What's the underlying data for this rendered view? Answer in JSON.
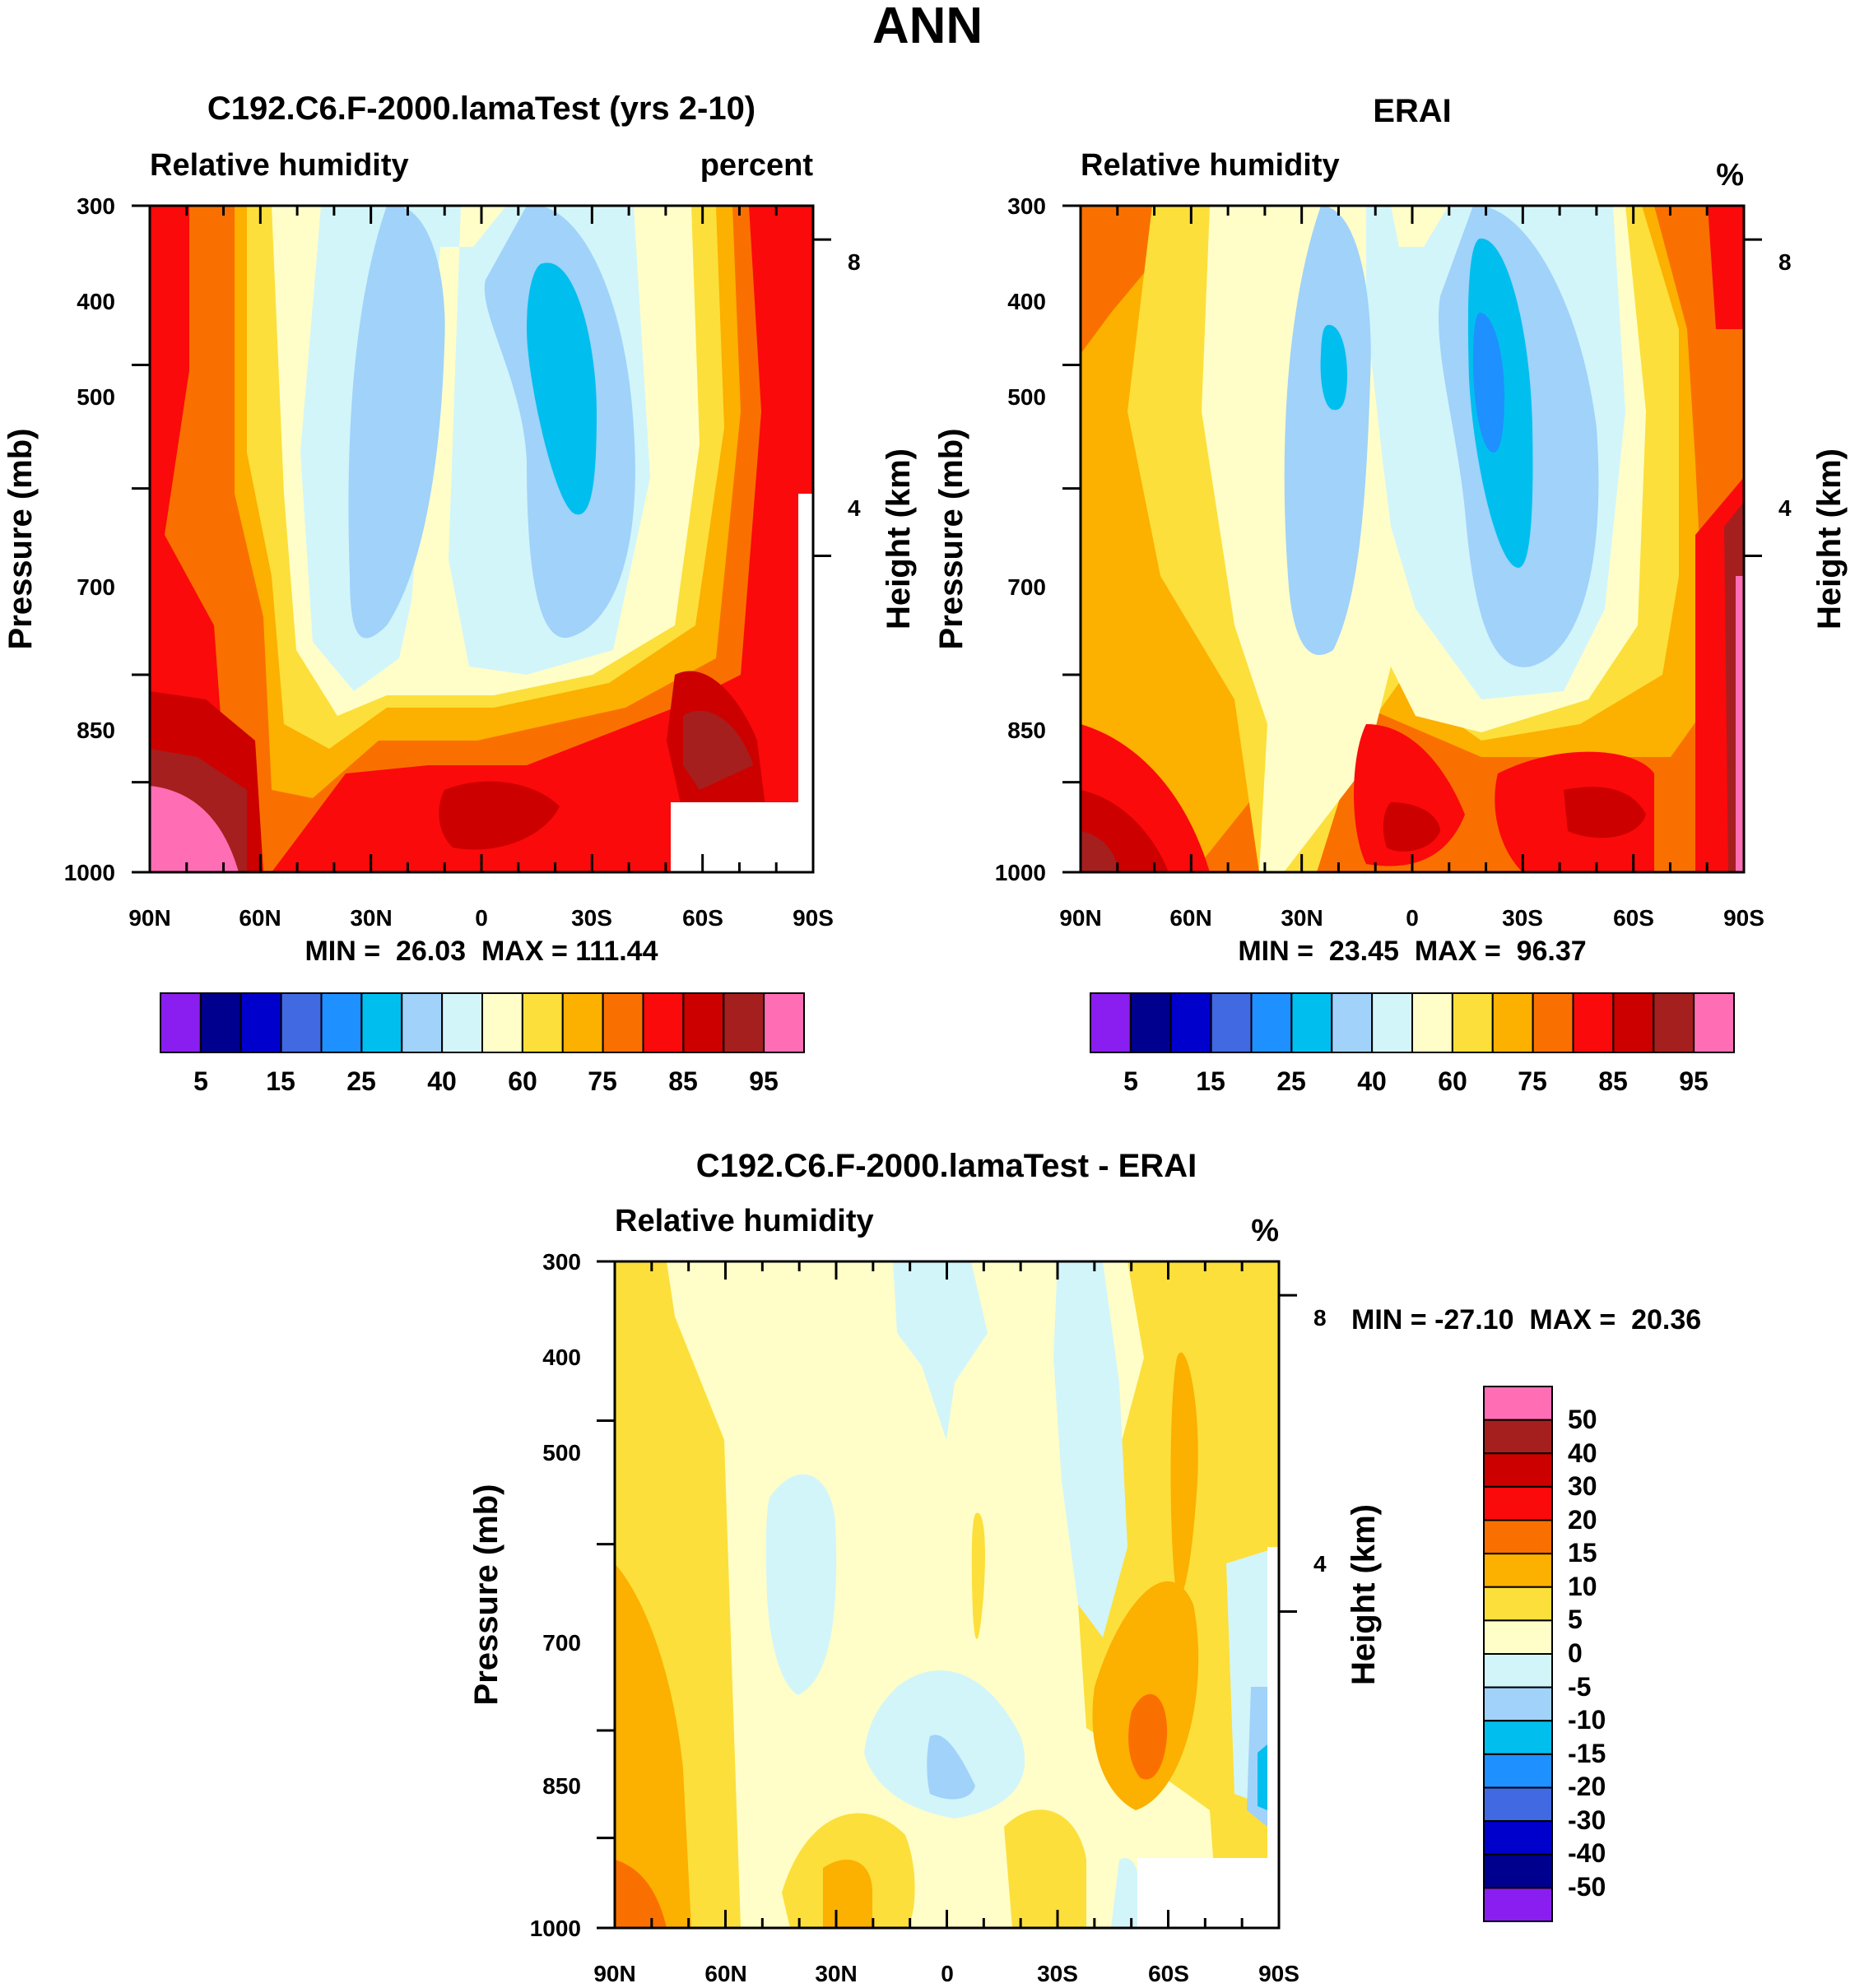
{
  "figure": {
    "title": "ANN"
  },
  "colors": {
    "levels": [
      "#8a1ef0",
      "#00008f",
      "#0000cd",
      "#4169e1",
      "#1e90ff",
      "#00bfef",
      "#a0d2fa",
      "#d2f5fa",
      "#fffec8",
      "#fcdf3a",
      "#fcb000",
      "#fa7000",
      "#fa0a0a",
      "#cd0000",
      "#a51f1f",
      "#ff6eb4"
    ]
  },
  "chart_data": [
    {
      "type": "contour",
      "id": "model",
      "title": "C192.C6.F-2000.lamaTest (yrs 2-10)",
      "left_label": "Relative humidity",
      "right_label": "percent",
      "ylabel": "Pressure (mb)",
      "ylabel_right": "Height (km)",
      "x_ticks": [
        "90N",
        "60N",
        "30N",
        "0",
        "30S",
        "60S",
        "90S"
      ],
      "x_values": [
        90,
        60,
        30,
        0,
        -30,
        -60,
        -90
      ],
      "y_ticks": [
        "300",
        "400",
        "500",
        "700",
        "850",
        "1000"
      ],
      "y_values": [
        300,
        400,
        500,
        700,
        850,
        1000
      ],
      "ylim": [
        1000,
        300
      ],
      "right_ticks": [
        "8",
        "4"
      ],
      "right_values": [
        8,
        4
      ],
      "stats": "MIN =  26.03  MAX = 111.44",
      "min": 26.03,
      "max": 111.44,
      "colorbar_labels": [
        "5",
        "15",
        "25",
        "40",
        "60",
        "75",
        "85",
        "95"
      ]
    },
    {
      "type": "contour",
      "id": "obs",
      "title": "ERAI",
      "left_label": "Relative humidity",
      "right_label": "%",
      "ylabel": "Pressure (mb)",
      "ylabel_right": "Height (km)",
      "x_ticks": [
        "90N",
        "60N",
        "30N",
        "0",
        "30S",
        "60S",
        "90S"
      ],
      "x_values": [
        90,
        60,
        30,
        0,
        -30,
        -60,
        -90
      ],
      "y_ticks": [
        "300",
        "400",
        "500",
        "700",
        "850",
        "1000"
      ],
      "y_values": [
        300,
        400,
        500,
        700,
        850,
        1000
      ],
      "ylim": [
        1000,
        300
      ],
      "right_ticks": [
        "8",
        "4"
      ],
      "right_values": [
        8,
        4
      ],
      "stats": "MIN =  23.45  MAX =  96.37",
      "min": 23.45,
      "max": 96.37,
      "colorbar_labels": [
        "5",
        "15",
        "25",
        "40",
        "60",
        "75",
        "85",
        "95"
      ]
    },
    {
      "type": "contour",
      "id": "diff",
      "title": "C192.C6.F-2000.lamaTest - ERAI",
      "left_label": "Relative humidity",
      "right_label": "%",
      "ylabel": "Pressure (mb)",
      "ylabel_right": "Height (km)",
      "x_ticks": [
        "90N",
        "60N",
        "30N",
        "0",
        "30S",
        "60S",
        "90S"
      ],
      "x_values": [
        90,
        60,
        30,
        0,
        -30,
        -60,
        -90
      ],
      "y_ticks": [
        "300",
        "400",
        "500",
        "700",
        "850",
        "1000"
      ],
      "y_values": [
        300,
        400,
        500,
        700,
        850,
        1000
      ],
      "ylim": [
        1000,
        300
      ],
      "right_ticks": [
        "8",
        "4"
      ],
      "right_values": [
        8,
        4
      ],
      "stats": "MIN = -27.10  MAX =  20.36",
      "min": -27.1,
      "max": 20.36,
      "colorbar_labels": [
        "50",
        "40",
        "30",
        "20",
        "15",
        "10",
        "5",
        "0",
        "-5",
        "-10",
        "-15",
        "-20",
        "-30",
        "-40",
        "-50"
      ]
    }
  ]
}
